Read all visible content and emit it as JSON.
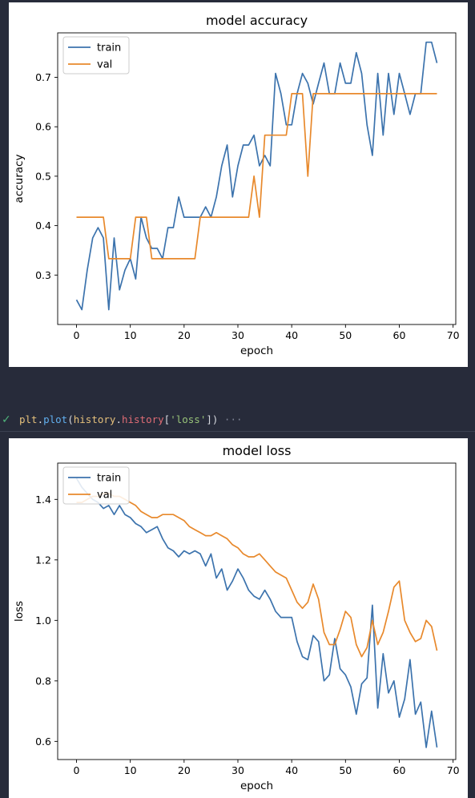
{
  "cell": {
    "status_icon": "check-icon",
    "tokens": [
      {
        "text": "plt",
        "color": "#e5c07b"
      },
      {
        "text": ".",
        "color": "#d7dae0"
      },
      {
        "text": "plot",
        "color": "#61afef"
      },
      {
        "text": "(",
        "color": "#d7dae0"
      },
      {
        "text": "history",
        "color": "#e5c07b"
      },
      {
        "text": ".",
        "color": "#d7dae0"
      },
      {
        "text": "history",
        "color": "#e06c75"
      },
      {
        "text": "[",
        "color": "#d7dae0"
      },
      {
        "text": "'loss'",
        "color": "#98c379"
      },
      {
        "text": "])",
        "color": "#d7dae0"
      }
    ],
    "ellipsis": "···"
  },
  "colors": {
    "train": "#3c73ad",
    "val": "#e8892c"
  },
  "chart_data": [
    {
      "type": "line",
      "title": "model accuracy",
      "xlabel": "epoch",
      "ylabel": "accuracy",
      "xlim": [
        -3.5,
        70.5
      ],
      "ylim": [
        0.2,
        0.79
      ],
      "xticks": [
        0,
        10,
        20,
        30,
        40,
        50,
        60,
        70
      ],
      "yticks": [
        0.3,
        0.4,
        0.5,
        0.6,
        0.7
      ],
      "ytick_labels": [
        "0.3",
        "0.4",
        "0.5",
        "0.6",
        "0.7"
      ],
      "legend": "top-left",
      "series": [
        {
          "name": "train",
          "values": [
            0.25,
            0.23,
            0.31,
            0.375,
            0.396,
            0.375,
            0.23,
            0.375,
            0.27,
            0.31,
            0.333,
            0.292,
            0.417,
            0.375,
            0.354,
            0.354,
            0.333,
            0.396,
            0.396,
            0.458,
            0.417,
            0.417,
            0.417,
            0.417,
            0.438,
            0.417,
            0.458,
            0.521,
            0.563,
            0.458,
            0.521,
            0.563,
            0.563,
            0.583,
            0.521,
            0.542,
            0.521,
            0.708,
            0.667,
            0.604,
            0.604,
            0.667,
            0.708,
            0.688,
            0.646,
            0.688,
            0.729,
            0.667,
            0.667,
            0.729,
            0.688,
            0.688,
            0.75,
            0.708,
            0.604,
            0.542,
            0.708,
            0.583,
            0.708,
            0.625,
            0.708,
            0.667,
            0.625,
            0.667,
            0.667,
            0.771,
            0.771,
            0.729
          ]
        },
        {
          "name": "val",
          "values": [
            0.417,
            0.417,
            0.417,
            0.417,
            0.417,
            0.417,
            0.333,
            0.333,
            0.333,
            0.333,
            0.333,
            0.417,
            0.417,
            0.417,
            0.333,
            0.333,
            0.333,
            0.333,
            0.333,
            0.333,
            0.333,
            0.333,
            0.333,
            0.417,
            0.417,
            0.417,
            0.417,
            0.417,
            0.417,
            0.417,
            0.417,
            0.417,
            0.417,
            0.5,
            0.417,
            0.583,
            0.583,
            0.583,
            0.583,
            0.583,
            0.667,
            0.667,
            0.667,
            0.5,
            0.667,
            0.667,
            0.667,
            0.667,
            0.667,
            0.667,
            0.667,
            0.667,
            0.667,
            0.667,
            0.667,
            0.667,
            0.667,
            0.667,
            0.667,
            0.667,
            0.667,
            0.667,
            0.667,
            0.667,
            0.667,
            0.667,
            0.667,
            0.667
          ]
        }
      ]
    },
    {
      "type": "line",
      "title": "model loss",
      "xlabel": "epoch",
      "ylabel": "loss",
      "xlim": [
        -3.5,
        70.5
      ],
      "ylim": [
        0.54,
        1.52
      ],
      "xticks": [
        0,
        10,
        20,
        30,
        40,
        50,
        60,
        70
      ],
      "yticks": [
        0.6,
        0.8,
        1.0,
        1.2,
        1.4
      ],
      "ytick_labels": [
        "0.6",
        "0.8",
        "1.0",
        "1.2",
        "1.4"
      ],
      "legend": "top-left",
      "series": [
        {
          "name": "train",
          "values": [
            1.47,
            1.44,
            1.42,
            1.4,
            1.39,
            1.37,
            1.38,
            1.35,
            1.38,
            1.35,
            1.34,
            1.32,
            1.31,
            1.29,
            1.3,
            1.31,
            1.27,
            1.24,
            1.23,
            1.21,
            1.23,
            1.22,
            1.23,
            1.22,
            1.18,
            1.22,
            1.14,
            1.17,
            1.1,
            1.13,
            1.17,
            1.14,
            1.1,
            1.08,
            1.07,
            1.1,
            1.07,
            1.03,
            1.01,
            1.01,
            1.01,
            0.93,
            0.88,
            0.87,
            0.95,
            0.93,
            0.8,
            0.82,
            0.94,
            0.84,
            0.82,
            0.78,
            0.69,
            0.79,
            0.81,
            1.05,
            0.71,
            0.89,
            0.76,
            0.8,
            0.68,
            0.74,
            0.87,
            0.69,
            0.73,
            0.58,
            0.7,
            0.58
          ]
        },
        {
          "name": "val",
          "values": [
            1.39,
            1.39,
            1.4,
            1.41,
            1.41,
            1.42,
            1.42,
            1.41,
            1.41,
            1.4,
            1.39,
            1.38,
            1.36,
            1.35,
            1.34,
            1.34,
            1.35,
            1.35,
            1.35,
            1.34,
            1.33,
            1.31,
            1.3,
            1.29,
            1.28,
            1.28,
            1.29,
            1.28,
            1.27,
            1.25,
            1.24,
            1.22,
            1.21,
            1.21,
            1.22,
            1.2,
            1.18,
            1.16,
            1.15,
            1.14,
            1.1,
            1.06,
            1.04,
            1.06,
            1.12,
            1.07,
            0.96,
            0.92,
            0.92,
            0.97,
            1.03,
            1.01,
            0.92,
            0.88,
            0.91,
            1.0,
            0.92,
            0.96,
            1.03,
            1.11,
            1.13,
            1.0,
            0.96,
            0.93,
            0.94,
            1.0,
            0.98,
            0.9
          ]
        }
      ]
    }
  ]
}
